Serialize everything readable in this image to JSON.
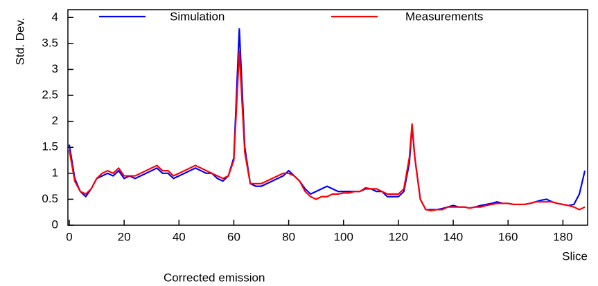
{
  "chart_data": {
    "type": "line",
    "ylabel": "Std. Dev.",
    "xlabel": "Slice",
    "caption": "Corrected emission",
    "xlim": [
      -0.5,
      189
    ],
    "ylim": [
      0,
      4.15
    ],
    "xticks": [
      0,
      20,
      40,
      60,
      80,
      100,
      120,
      140,
      160,
      180
    ],
    "yticks": [
      0,
      0.5,
      1,
      1.5,
      2,
      2.5,
      3,
      3.5,
      4
    ],
    "x": [
      0,
      2,
      4,
      6,
      8,
      10,
      12,
      14,
      16,
      18,
      20,
      22,
      24,
      26,
      28,
      30,
      32,
      34,
      36,
      38,
      40,
      42,
      44,
      46,
      48,
      50,
      52,
      54,
      56,
      58,
      60,
      62,
      64,
      66,
      68,
      70,
      72,
      74,
      76,
      78,
      80,
      82,
      84,
      86,
      88,
      90,
      92,
      94,
      96,
      98,
      100,
      102,
      104,
      106,
      108,
      110,
      112,
      114,
      116,
      118,
      120,
      122,
      124,
      125,
      126,
      128,
      130,
      132,
      134,
      136,
      138,
      140,
      142,
      144,
      146,
      148,
      150,
      152,
      154,
      156,
      158,
      160,
      162,
      164,
      166,
      168,
      170,
      172,
      174,
      176,
      178,
      180,
      182,
      184,
      186,
      188
    ],
    "series": [
      {
        "name": "Simulation",
        "color": "#0000ff",
        "values": [
          1.55,
          0.9,
          0.65,
          0.55,
          0.7,
          0.9,
          0.95,
          1.0,
          0.95,
          1.05,
          0.9,
          0.95,
          0.9,
          0.95,
          1.0,
          1.05,
          1.1,
          1.0,
          1.0,
          0.9,
          0.95,
          1.0,
          1.05,
          1.1,
          1.05,
          1.0,
          1.0,
          0.9,
          0.85,
          0.95,
          1.3,
          3.78,
          1.5,
          0.8,
          0.75,
          0.75,
          0.8,
          0.85,
          0.9,
          0.95,
          1.05,
          0.95,
          0.85,
          0.7,
          0.6,
          0.65,
          0.7,
          0.75,
          0.7,
          0.65,
          0.65,
          0.65,
          0.65,
          0.65,
          0.7,
          0.7,
          0.65,
          0.65,
          0.55,
          0.55,
          0.55,
          0.65,
          1.2,
          1.9,
          1.3,
          0.5,
          0.3,
          0.3,
          0.3,
          0.32,
          0.35,
          0.38,
          0.35,
          0.35,
          0.33,
          0.35,
          0.38,
          0.4,
          0.42,
          0.45,
          0.42,
          0.42,
          0.4,
          0.4,
          0.4,
          0.42,
          0.45,
          0.48,
          0.5,
          0.45,
          0.42,
          0.4,
          0.38,
          0.4,
          0.6,
          1.05
        ]
      },
      {
        "name": "Measurements",
        "color": "#ff0000",
        "values": [
          1.45,
          0.85,
          0.65,
          0.6,
          0.7,
          0.9,
          1.0,
          1.05,
          1.0,
          1.1,
          0.95,
          0.95,
          0.95,
          1.0,
          1.05,
          1.1,
          1.15,
          1.05,
          1.05,
          0.95,
          1.0,
          1.05,
          1.1,
          1.15,
          1.1,
          1.05,
          1.0,
          0.95,
          0.9,
          0.95,
          1.25,
          3.35,
          1.4,
          0.8,
          0.8,
          0.8,
          0.85,
          0.9,
          0.95,
          1.0,
          1.0,
          0.95,
          0.85,
          0.65,
          0.55,
          0.5,
          0.55,
          0.55,
          0.6,
          0.6,
          0.62,
          0.62,
          0.65,
          0.65,
          0.72,
          0.7,
          0.7,
          0.65,
          0.6,
          0.6,
          0.6,
          0.7,
          1.3,
          1.95,
          1.3,
          0.5,
          0.3,
          0.28,
          0.3,
          0.3,
          0.35,
          0.35,
          0.35,
          0.35,
          0.33,
          0.35,
          0.35,
          0.38,
          0.4,
          0.42,
          0.42,
          0.42,
          0.4,
          0.4,
          0.4,
          0.42,
          0.45,
          0.45,
          0.45,
          0.45,
          0.42,
          0.4,
          0.38,
          0.35,
          0.3,
          0.35
        ]
      }
    ]
  }
}
